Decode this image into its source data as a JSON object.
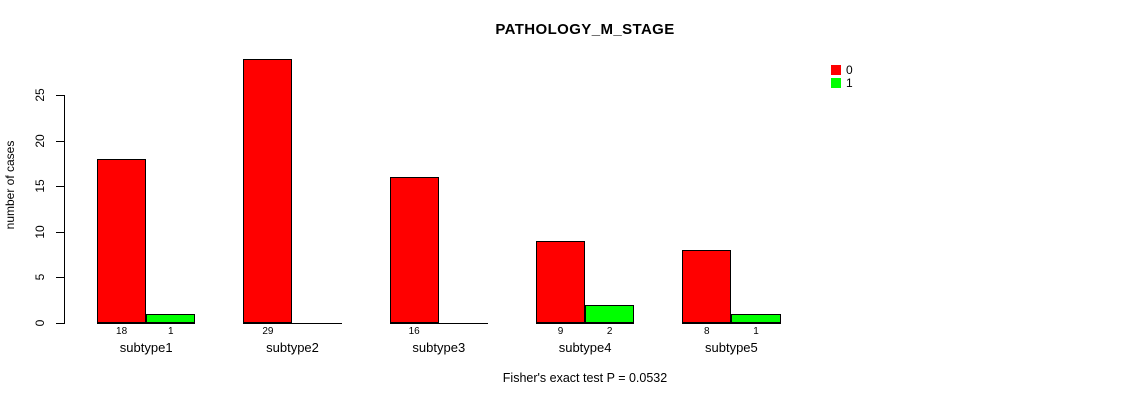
{
  "chart_data": {
    "type": "bar",
    "title": "PATHOLOGY_M_STAGE",
    "ylabel": "number of cases",
    "xlabel": "",
    "categories": [
      "subtype1",
      "subtype2",
      "subtype3",
      "subtype4",
      "subtype5"
    ],
    "series": [
      {
        "name": "0",
        "color": "#ff0000",
        "values": [
          18,
          29,
          16,
          9,
          8
        ]
      },
      {
        "name": "1",
        "color": "#00ff00",
        "values": [
          1,
          0,
          0,
          2,
          1
        ]
      }
    ],
    "yticks": [
      0,
      5,
      10,
      15,
      20,
      25
    ],
    "ylim": [
      0,
      29
    ],
    "grid": false,
    "legend_position": "top-right",
    "bar_value_labels_shown": "only non-zero values, printed under each bar",
    "annotation": "Fisher's exact test P = 0.0532",
    "colors": {
      "background": "#ffffff",
      "axis": "#000000",
      "text": "#000000"
    }
  }
}
